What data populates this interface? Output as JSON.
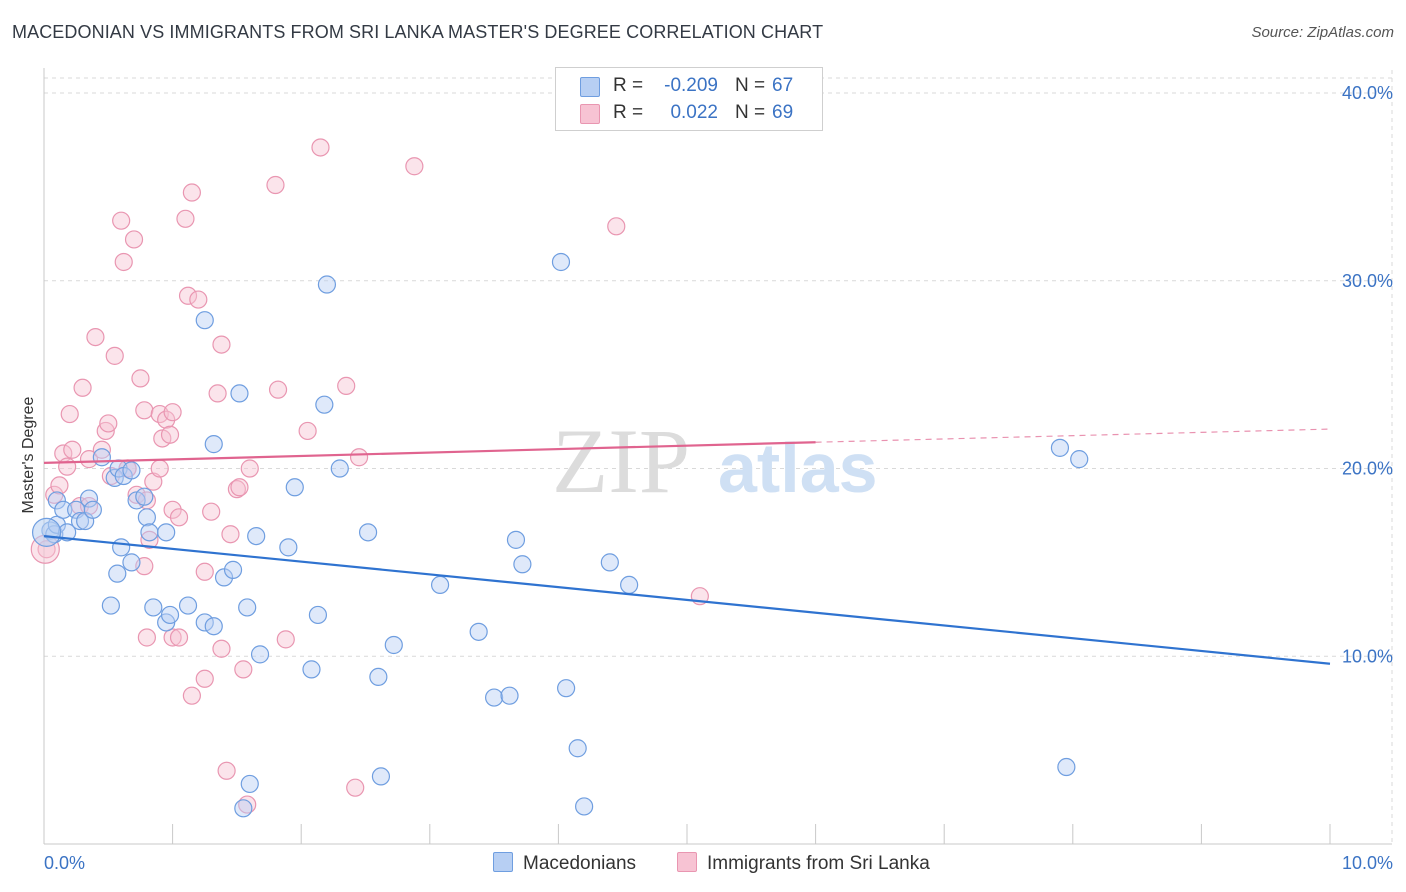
{
  "title": "MACEDONIAN VS IMMIGRANTS FROM SRI LANKA MASTER'S DEGREE CORRELATION CHART",
  "source": "Source: ZipAtlas.com",
  "watermark": {
    "zip": "ZIP",
    "atlas": "atlas"
  },
  "legend": {
    "rows": [
      {
        "r_label": "R =",
        "r_value": "-0.209",
        "n_label": "N =",
        "n_value": "67"
      },
      {
        "r_label": "R =",
        "r_value": "0.022",
        "n_label": "N =",
        "n_value": "69"
      }
    ]
  },
  "bottom_legend": {
    "series1": "Macedonians",
    "series2": "Immigrants from Sri Lanka"
  },
  "colors": {
    "blue_fill": "#b7cff3",
    "blue_stroke": "#6f9ee0",
    "blue_line": "#2f73d0",
    "pink_fill": "#f7c3d3",
    "pink_stroke": "#e996b1",
    "pink_line": "#e0648f",
    "grid": "#d9d9d9",
    "tick_text": "#3b73c4"
  },
  "chart_data": {
    "type": "scatter",
    "title": "MACEDONIAN VS IMMIGRANTS FROM SRI LANKA MASTER'S DEGREE CORRELATION CHART",
    "xlabel": "",
    "ylabel": "Master's Degree",
    "xlim": [
      0,
      10
    ],
    "ylim": [
      0,
      40.8
    ],
    "x_tick_labels": [
      {
        "v": 0,
        "label": "0.0%"
      },
      {
        "v": 10,
        "label": "10.0%"
      }
    ],
    "y_tick_labels": [
      {
        "v": 10,
        "label": "10.0%"
      },
      {
        "v": 20,
        "label": "20.0%"
      },
      {
        "v": 30,
        "label": "30.0%"
      },
      {
        "v": 40,
        "label": "40.0%"
      }
    ],
    "series": [
      {
        "name": "Macedonians",
        "r": -0.209,
        "n": 67,
        "trend": {
          "x0": 0,
          "y0": 16.4,
          "x1": 10,
          "y1": 9.6
        },
        "points": [
          [
            0.05,
            16.7
          ],
          [
            0.08,
            16.5
          ],
          [
            0.1,
            17.0
          ],
          [
            0.1,
            18.3
          ],
          [
            0.15,
            17.8
          ],
          [
            0.18,
            16.6
          ],
          [
            0.25,
            17.8
          ],
          [
            0.28,
            17.2
          ],
          [
            0.32,
            17.2
          ],
          [
            0.35,
            18.4
          ],
          [
            0.38,
            17.8
          ],
          [
            0.45,
            20.6
          ],
          [
            0.55,
            19.5
          ],
          [
            0.58,
            20.0
          ],
          [
            0.62,
            19.6
          ],
          [
            0.68,
            19.9
          ],
          [
            0.72,
            18.3
          ],
          [
            0.78,
            18.5
          ],
          [
            0.8,
            17.4
          ],
          [
            0.82,
            16.6
          ],
          [
            0.95,
            16.6
          ],
          [
            0.6,
            15.8
          ],
          [
            0.57,
            14.4
          ],
          [
            0.68,
            15.0
          ],
          [
            0.52,
            12.7
          ],
          [
            0.85,
            12.6
          ],
          [
            0.95,
            11.8
          ],
          [
            0.98,
            12.2
          ],
          [
            1.12,
            12.7
          ],
          [
            1.25,
            11.8
          ],
          [
            1.32,
            11.6
          ],
          [
            1.4,
            14.2
          ],
          [
            1.47,
            14.6
          ],
          [
            1.52,
            24.0
          ],
          [
            1.32,
            21.3
          ],
          [
            1.25,
            27.9
          ],
          [
            1.58,
            12.6
          ],
          [
            1.65,
            16.4
          ],
          [
            1.68,
            10.1
          ],
          [
            1.9,
            15.8
          ],
          [
            1.95,
            19.0
          ],
          [
            2.08,
            9.3
          ],
          [
            2.13,
            12.2
          ],
          [
            2.18,
            23.4
          ],
          [
            2.2,
            29.8
          ],
          [
            2.3,
            20.0
          ],
          [
            2.52,
            16.6
          ],
          [
            2.6,
            8.9
          ],
          [
            2.72,
            10.6
          ],
          [
            3.08,
            13.8
          ],
          [
            3.38,
            11.3
          ],
          [
            3.5,
            7.8
          ],
          [
            3.62,
            7.9
          ],
          [
            3.67,
            16.2
          ],
          [
            3.72,
            14.9
          ],
          [
            4.06,
            8.3
          ],
          [
            4.02,
            31.0
          ],
          [
            4.15,
            5.1
          ],
          [
            4.2,
            2.0
          ],
          [
            4.4,
            15.0
          ],
          [
            4.55,
            13.8
          ],
          [
            2.62,
            3.6
          ],
          [
            1.6,
            3.2
          ],
          [
            1.55,
            1.9
          ],
          [
            7.9,
            21.1
          ],
          [
            8.05,
            20.5
          ],
          [
            7.95,
            4.1
          ]
        ]
      },
      {
        "name": "Immigrants from Sri Lanka",
        "r": 0.022,
        "n": 69,
        "trend": {
          "x0": 0,
          "y0": 20.3,
          "x1": 6.0,
          "y1": 21.4,
          "dash_x1": 10,
          "dash_y1": 22.1
        },
        "points": [
          [
            0.02,
            15.7
          ],
          [
            0.08,
            18.6
          ],
          [
            0.12,
            19.1
          ],
          [
            0.15,
            20.8
          ],
          [
            0.18,
            20.1
          ],
          [
            0.2,
            22.9
          ],
          [
            0.22,
            21.0
          ],
          [
            0.28,
            18.0
          ],
          [
            0.3,
            24.3
          ],
          [
            0.35,
            20.5
          ],
          [
            0.4,
            27.0
          ],
          [
            0.45,
            21.0
          ],
          [
            0.48,
            22.0
          ],
          [
            0.5,
            22.4
          ],
          [
            0.52,
            19.6
          ],
          [
            0.55,
            26.0
          ],
          [
            0.6,
            33.2
          ],
          [
            0.62,
            31.0
          ],
          [
            0.65,
            20.0
          ],
          [
            0.7,
            32.2
          ],
          [
            0.72,
            18.6
          ],
          [
            0.75,
            24.8
          ],
          [
            0.78,
            23.1
          ],
          [
            0.8,
            18.3
          ],
          [
            0.82,
            16.2
          ],
          [
            0.85,
            19.3
          ],
          [
            0.9,
            22.9
          ],
          [
            0.92,
            21.6
          ],
          [
            0.95,
            22.6
          ],
          [
            0.98,
            21.8
          ],
          [
            1.0,
            17.8
          ],
          [
            1.05,
            17.4
          ],
          [
            1.1,
            33.3
          ],
          [
            1.12,
            29.2
          ],
          [
            1.15,
            34.7
          ],
          [
            1.2,
            29.0
          ],
          [
            1.25,
            14.5
          ],
          [
            1.3,
            17.7
          ],
          [
            1.35,
            24.0
          ],
          [
            1.38,
            26.6
          ],
          [
            1.45,
            16.5
          ],
          [
            1.5,
            18.9
          ],
          [
            1.55,
            9.3
          ],
          [
            1.6,
            20.0
          ],
          [
            1.8,
            35.1
          ],
          [
            1.82,
            24.2
          ],
          [
            1.88,
            10.9
          ],
          [
            2.05,
            22.0
          ],
          [
            2.15,
            37.1
          ],
          [
            2.35,
            24.4
          ],
          [
            2.45,
            20.6
          ],
          [
            2.88,
            36.1
          ],
          [
            4.45,
            32.9
          ],
          [
            5.1,
            13.2
          ],
          [
            0.78,
            14.8
          ],
          [
            0.8,
            11.0
          ],
          [
            1.0,
            11.0
          ],
          [
            1.05,
            11.0
          ],
          [
            1.15,
            7.9
          ],
          [
            1.25,
            8.8
          ],
          [
            1.38,
            10.4
          ],
          [
            1.42,
            3.9
          ],
          [
            1.58,
            2.1
          ],
          [
            2.42,
            3.0
          ],
          [
            0.35,
            18.0
          ],
          [
            0.9,
            20.0
          ],
          [
            1.0,
            23.0
          ],
          [
            0.65,
            20.0
          ],
          [
            1.52,
            19.0
          ]
        ]
      }
    ]
  }
}
